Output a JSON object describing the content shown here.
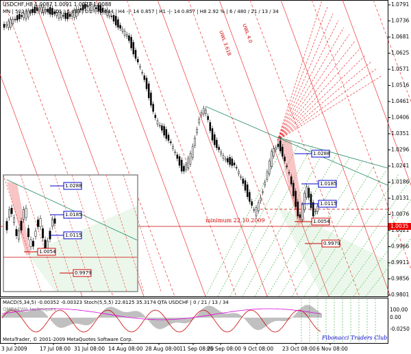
{
  "header": "USDCHF,H8  1.0087 1.0091 1.0077 1.0088",
  "subheader": "MN | 502 | W1 | 179 | D1 | 1.439 | D1 -|- 0.644 | H4 -|- 14  0.857 | H1 -|- 14  0.857 | H8  2.92 % | 6 / 480 / 21 / 13 / 34",
  "price_axis": [
    "1.0791",
    "1.0736",
    "1.0681",
    "1.0625",
    "1.0571",
    "1.0516",
    "1.0461",
    "1.0406",
    "1.0351",
    "1.0296",
    "1.0241",
    "1.0186",
    "1.0131",
    "1.0076",
    "1.0021",
    "0.9966",
    "0.9911",
    "0.9856",
    "0.9801"
  ],
  "current_price": "1.0035",
  "dates": [
    "3 Jul 2009",
    "17 Jul 08:00",
    "31 Jul 08:00",
    "14 Aug 08:00",
    "28 Aug 08:00",
    "11 Sep 08:00",
    "25 Sep 08:00",
    "9 Oct 08:00",
    "23 Oct 08:00",
    "6 Nov 08:00"
  ],
  "level_labels": [
    "1.0288",
    "1.0185",
    "1.0115",
    "1.0054",
    "0.9979"
  ],
  "minimum_label": "minimum 22.10.2009",
  "line_labels": [
    "UWL 3.618",
    "UWL 4.0"
  ],
  "indicator": {
    "header": "MACD(5,34,5) -0.00352 -0.00323  Stoch(5,5,5) 22.8125 35.3174  QTA USDCHF  | 0 / 21 / 13 / 34",
    "subtitle": "OMCAEWA techniques",
    "axis": [
      "100.00",
      "0.00",
      "-0.0250"
    ]
  },
  "footer": "MetaTrader, © 2001-2009 MetaQuotes Software Corp.",
  "club": "Fibonacci Traders Club"
}
